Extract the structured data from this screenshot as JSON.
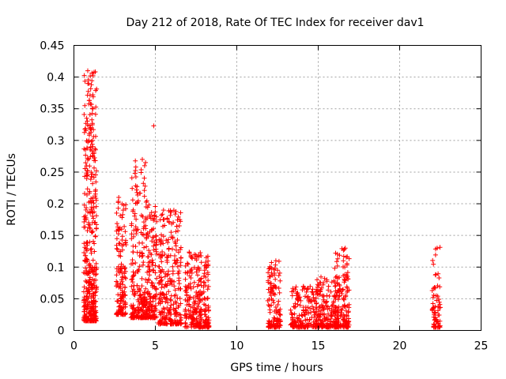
{
  "chart_data": {
    "type": "scatter",
    "title": "Day 212 of 2018, Rate Of TEC Index for receiver dav1",
    "xlabel": "GPS time / hours",
    "ylabel": "ROTI / TECUs",
    "xlim": [
      0,
      25
    ],
    "ylim": [
      0,
      0.45
    ],
    "xticks": [
      0,
      5,
      10,
      15,
      20,
      25
    ],
    "yticks": [
      0,
      0.05,
      0.1,
      0.15,
      0.2,
      0.25,
      0.3,
      0.35,
      0.4,
      0.45
    ],
    "xtick_labels": [
      "0",
      "5",
      "10",
      "15",
      "20",
      "25"
    ],
    "ytick_labels": [
      "0",
      "0.05",
      "0.1",
      "0.15",
      "0.2",
      "0.25",
      "0.3",
      "0.35",
      "0.4",
      "0.45"
    ],
    "grid": true,
    "marker": "+",
    "color": "#ff0000",
    "clusters": [
      {
        "x": [
          0.6,
          1.4
        ],
        "y": [
          0.015,
          0.41
        ],
        "n": 420
      },
      {
        "x": [
          2.6,
          3.2
        ],
        "y": [
          0.025,
          0.215
        ],
        "n": 140
      },
      {
        "x": [
          3.5,
          4.5
        ],
        "y": [
          0.02,
          0.27
        ],
        "n": 230
      },
      {
        "x": [
          4.5,
          5.1
        ],
        "y": [
          0.02,
          0.2
        ],
        "n": 140
      },
      {
        "x": [
          5.2,
          6.6
        ],
        "y": [
          0.01,
          0.19
        ],
        "n": 270
      },
      {
        "x": [
          6.8,
          8.3
        ],
        "y": [
          0.005,
          0.125
        ],
        "n": 260
      },
      {
        "x": [
          11.9,
          12.7
        ],
        "y": [
          0.005,
          0.11
        ],
        "n": 130
      },
      {
        "x": [
          13.3,
          14.8
        ],
        "y": [
          0.005,
          0.07
        ],
        "n": 160
      },
      {
        "x": [
          14.8,
          16.2
        ],
        "y": [
          0.005,
          0.085
        ],
        "n": 190
      },
      {
        "x": [
          16.0,
          16.9
        ],
        "y": [
          0.005,
          0.13
        ],
        "n": 160
      },
      {
        "x": [
          22.0,
          22.5
        ],
        "y": [
          0.005,
          0.135
        ],
        "n": 70
      }
    ],
    "peaks": [
      {
        "x": 0.85,
        "y": 0.41
      },
      {
        "x": 0.9,
        "y": 0.39
      },
      {
        "x": 0.95,
        "y": 0.363
      },
      {
        "x": 1.0,
        "y": 0.318
      },
      {
        "x": 0.8,
        "y": 0.288
      },
      {
        "x": 4.9,
        "y": 0.323
      },
      {
        "x": 4.2,
        "y": 0.27
      },
      {
        "x": 4.4,
        "y": 0.265
      },
      {
        "x": 3.8,
        "y": 0.258
      },
      {
        "x": 2.75,
        "y": 0.21
      },
      {
        "x": 5.5,
        "y": 0.19
      },
      {
        "x": 6.5,
        "y": 0.175
      },
      {
        "x": 7.4,
        "y": 0.12
      },
      {
        "x": 12.4,
        "y": 0.11
      },
      {
        "x": 16.6,
        "y": 0.128
      },
      {
        "x": 22.3,
        "y": 0.13
      }
    ]
  }
}
